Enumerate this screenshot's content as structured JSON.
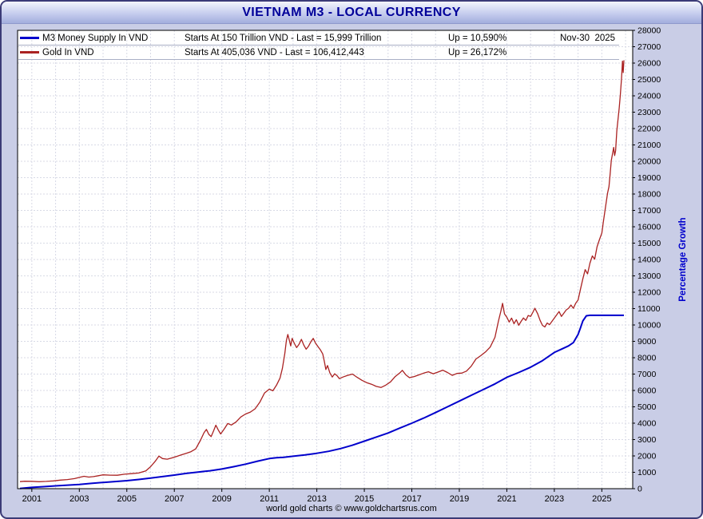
{
  "window": {
    "title": "VIETNAM M3 - LOCAL CURRENCY"
  },
  "footer": {
    "credit": "world gold charts © www.goldchartsrus.com"
  },
  "legend": {
    "rows": [
      {
        "name": "M3 Money Supply In VND",
        "detail": "Starts At 150 Trillion VND - Last = 15,999 Trillion",
        "up": "Up = 10,590%",
        "date": "Nov-30  2025",
        "color": "#0000cc"
      },
      {
        "name": "Gold In VND",
        "detail": "Starts At 405,036 VND - Last = 106,412,443",
        "up": "Up = 26,172%",
        "date": "",
        "color": "#aa2222"
      }
    ]
  },
  "chart_data": {
    "type": "line",
    "title": "VIETNAM M3 - LOCAL CURRENCY",
    "xlabel": "",
    "ylabel": "Percentage Growth",
    "ylabel_color": "#0000cc",
    "ylim": [
      0,
      28000
    ],
    "y_tick_step": 1000,
    "xlim": [
      2000.4,
      2026.3
    ],
    "x_ticks": [
      2001,
      2003,
      2005,
      2007,
      2009,
      2011,
      2013,
      2015,
      2017,
      2019,
      2021,
      2023,
      2025
    ],
    "grid": true,
    "legend_position": "top-left",
    "series": [
      {
        "name": "M3 Money Supply In VND",
        "color": "#0000cc",
        "width": 2,
        "points": [
          [
            2000.5,
            10
          ],
          [
            2001,
            80
          ],
          [
            2001.5,
            120
          ],
          [
            2002,
            170
          ],
          [
            2002.5,
            215
          ],
          [
            2003,
            260
          ],
          [
            2003.5,
            320
          ],
          [
            2004,
            380
          ],
          [
            2004.5,
            435
          ],
          [
            2005,
            490
          ],
          [
            2005.5,
            560
          ],
          [
            2006,
            645
          ],
          [
            2006.5,
            735
          ],
          [
            2007,
            830
          ],
          [
            2007.5,
            930
          ],
          [
            2008,
            1015
          ],
          [
            2008.5,
            1095
          ],
          [
            2009,
            1200
          ],
          [
            2009.5,
            1340
          ],
          [
            2010,
            1500
          ],
          [
            2010.5,
            1680
          ],
          [
            2011,
            1840
          ],
          [
            2011.3,
            1890
          ],
          [
            2011.6,
            1915
          ],
          [
            2012,
            1980
          ],
          [
            2012.5,
            2060
          ],
          [
            2013,
            2160
          ],
          [
            2013.5,
            2285
          ],
          [
            2014,
            2450
          ],
          [
            2014.5,
            2655
          ],
          [
            2015,
            2900
          ],
          [
            2015.5,
            3150
          ],
          [
            2016,
            3400
          ],
          [
            2016.5,
            3700
          ],
          [
            2017,
            4000
          ],
          [
            2017.5,
            4310
          ],
          [
            2018,
            4650
          ],
          [
            2018.5,
            5000
          ],
          [
            2019,
            5350
          ],
          [
            2019.5,
            5700
          ],
          [
            2020,
            6050
          ],
          [
            2020.5,
            6400
          ],
          [
            2021,
            6800
          ],
          [
            2021.5,
            7100
          ],
          [
            2022,
            7420
          ],
          [
            2022.5,
            7820
          ],
          [
            2023,
            8320
          ],
          [
            2023.3,
            8520
          ],
          [
            2023.6,
            8720
          ],
          [
            2023.8,
            8920
          ],
          [
            2024,
            9420
          ],
          [
            2024.1,
            9820
          ],
          [
            2024.2,
            10250
          ],
          [
            2024.35,
            10560
          ],
          [
            2024.5,
            10590
          ],
          [
            2025,
            10590
          ],
          [
            2025.5,
            10590
          ],
          [
            2025.93,
            10590
          ]
        ]
      },
      {
        "name": "Gold In VND",
        "color": "#aa2222",
        "width": 1.3,
        "points": [
          [
            2000.5,
            430
          ],
          [
            2000.7,
            455
          ],
          [
            2001,
            450
          ],
          [
            2001.3,
            425
          ],
          [
            2001.6,
            445
          ],
          [
            2001.9,
            475
          ],
          [
            2002.2,
            520
          ],
          [
            2002.5,
            555
          ],
          [
            2002.8,
            615
          ],
          [
            2003,
            690
          ],
          [
            2003.2,
            755
          ],
          [
            2003.4,
            705
          ],
          [
            2003.6,
            735
          ],
          [
            2003.8,
            790
          ],
          [
            2004,
            845
          ],
          [
            2004.3,
            825
          ],
          [
            2004.6,
            820
          ],
          [
            2004.9,
            885
          ],
          [
            2005.2,
            915
          ],
          [
            2005.5,
            955
          ],
          [
            2005.8,
            1090
          ],
          [
            2006,
            1340
          ],
          [
            2006.2,
            1680
          ],
          [
            2006.35,
            1990
          ],
          [
            2006.5,
            1840
          ],
          [
            2006.7,
            1800
          ],
          [
            2006.9,
            1880
          ],
          [
            2007.1,
            1970
          ],
          [
            2007.3,
            2070
          ],
          [
            2007.5,
            2160
          ],
          [
            2007.7,
            2260
          ],
          [
            2007.9,
            2430
          ],
          [
            2008.1,
            2950
          ],
          [
            2008.25,
            3420
          ],
          [
            2008.35,
            3620
          ],
          [
            2008.45,
            3320
          ],
          [
            2008.55,
            3180
          ],
          [
            2008.65,
            3520
          ],
          [
            2008.75,
            3880
          ],
          [
            2008.85,
            3590
          ],
          [
            2008.95,
            3340
          ],
          [
            2009.1,
            3640
          ],
          [
            2009.25,
            3980
          ],
          [
            2009.4,
            3890
          ],
          [
            2009.6,
            4080
          ],
          [
            2009.8,
            4380
          ],
          [
            2010,
            4560
          ],
          [
            2010.2,
            4680
          ],
          [
            2010.4,
            4880
          ],
          [
            2010.6,
            5280
          ],
          [
            2010.8,
            5850
          ],
          [
            2011,
            6080
          ],
          [
            2011.15,
            5980
          ],
          [
            2011.3,
            6320
          ],
          [
            2011.45,
            6750
          ],
          [
            2011.55,
            7350
          ],
          [
            2011.65,
            8250
          ],
          [
            2011.72,
            9050
          ],
          [
            2011.78,
            9420
          ],
          [
            2011.84,
            9080
          ],
          [
            2011.9,
            8720
          ],
          [
            2011.96,
            9180
          ],
          [
            2012.05,
            8880
          ],
          [
            2012.15,
            8620
          ],
          [
            2012.25,
            8820
          ],
          [
            2012.35,
            9120
          ],
          [
            2012.45,
            8780
          ],
          [
            2012.55,
            8520
          ],
          [
            2012.65,
            8700
          ],
          [
            2012.75,
            8980
          ],
          [
            2012.85,
            9180
          ],
          [
            2012.95,
            8880
          ],
          [
            2013.05,
            8680
          ],
          [
            2013.15,
            8480
          ],
          [
            2013.25,
            8230
          ],
          [
            2013.32,
            7750
          ],
          [
            2013.38,
            7280
          ],
          [
            2013.45,
            7520
          ],
          [
            2013.55,
            7080
          ],
          [
            2013.65,
            6820
          ],
          [
            2013.75,
            7020
          ],
          [
            2013.85,
            6900
          ],
          [
            2013.95,
            6720
          ],
          [
            2014.1,
            6820
          ],
          [
            2014.3,
            6920
          ],
          [
            2014.5,
            7000
          ],
          [
            2014.7,
            6800
          ],
          [
            2014.9,
            6620
          ],
          [
            2015.1,
            6480
          ],
          [
            2015.3,
            6380
          ],
          [
            2015.5,
            6250
          ],
          [
            2015.7,
            6180
          ],
          [
            2015.9,
            6320
          ],
          [
            2016.1,
            6520
          ],
          [
            2016.3,
            6850
          ],
          [
            2016.5,
            7080
          ],
          [
            2016.6,
            7230
          ],
          [
            2016.75,
            6950
          ],
          [
            2016.9,
            6780
          ],
          [
            2017.1,
            6850
          ],
          [
            2017.3,
            6950
          ],
          [
            2017.5,
            7060
          ],
          [
            2017.7,
            7140
          ],
          [
            2017.9,
            7020
          ],
          [
            2018.1,
            7120
          ],
          [
            2018.3,
            7240
          ],
          [
            2018.5,
            7100
          ],
          [
            2018.7,
            6920
          ],
          [
            2018.9,
            7040
          ],
          [
            2019.1,
            7060
          ],
          [
            2019.3,
            7180
          ],
          [
            2019.5,
            7480
          ],
          [
            2019.7,
            7920
          ],
          [
            2019.9,
            8120
          ],
          [
            2020.1,
            8350
          ],
          [
            2020.3,
            8650
          ],
          [
            2020.5,
            9250
          ],
          [
            2020.65,
            10250
          ],
          [
            2020.75,
            10850
          ],
          [
            2020.82,
            11320
          ],
          [
            2020.9,
            10680
          ],
          [
            2021,
            10480
          ],
          [
            2021.1,
            10180
          ],
          [
            2021.2,
            10420
          ],
          [
            2021.3,
            10080
          ],
          [
            2021.4,
            10320
          ],
          [
            2021.5,
            9980
          ],
          [
            2021.6,
            10220
          ],
          [
            2021.7,
            10430
          ],
          [
            2021.8,
            10280
          ],
          [
            2021.9,
            10580
          ],
          [
            2022,
            10520
          ],
          [
            2022.1,
            10780
          ],
          [
            2022.18,
            11020
          ],
          [
            2022.3,
            10680
          ],
          [
            2022.4,
            10280
          ],
          [
            2022.5,
            9980
          ],
          [
            2022.6,
            9880
          ],
          [
            2022.7,
            10120
          ],
          [
            2022.8,
            10020
          ],
          [
            2022.9,
            10220
          ],
          [
            2023,
            10420
          ],
          [
            2023.1,
            10620
          ],
          [
            2023.2,
            10820
          ],
          [
            2023.3,
            10520
          ],
          [
            2023.4,
            10720
          ],
          [
            2023.5,
            10920
          ],
          [
            2023.6,
            11020
          ],
          [
            2023.7,
            11220
          ],
          [
            2023.8,
            11020
          ],
          [
            2023.9,
            11320
          ],
          [
            2024,
            11520
          ],
          [
            2024.1,
            12180
          ],
          [
            2024.2,
            12820
          ],
          [
            2024.3,
            13380
          ],
          [
            2024.4,
            13120
          ],
          [
            2024.5,
            13780
          ],
          [
            2024.6,
            14220
          ],
          [
            2024.7,
            14020
          ],
          [
            2024.8,
            14780
          ],
          [
            2024.9,
            15220
          ],
          [
            2025,
            15620
          ],
          [
            2025.06,
            16250
          ],
          [
            2025.12,
            16850
          ],
          [
            2025.18,
            17450
          ],
          [
            2025.24,
            18050
          ],
          [
            2025.3,
            18450
          ],
          [
            2025.35,
            19250
          ],
          [
            2025.4,
            20050
          ],
          [
            2025.45,
            20450
          ],
          [
            2025.5,
            20850
          ],
          [
            2025.54,
            20350
          ],
          [
            2025.58,
            20650
          ],
          [
            2025.63,
            21850
          ],
          [
            2025.68,
            22550
          ],
          [
            2025.73,
            23250
          ],
          [
            2025.78,
            24050
          ],
          [
            2025.83,
            25050
          ],
          [
            2025.87,
            26120
          ],
          [
            2025.9,
            25420
          ],
          [
            2025.93,
            26172
          ]
        ]
      }
    ]
  }
}
